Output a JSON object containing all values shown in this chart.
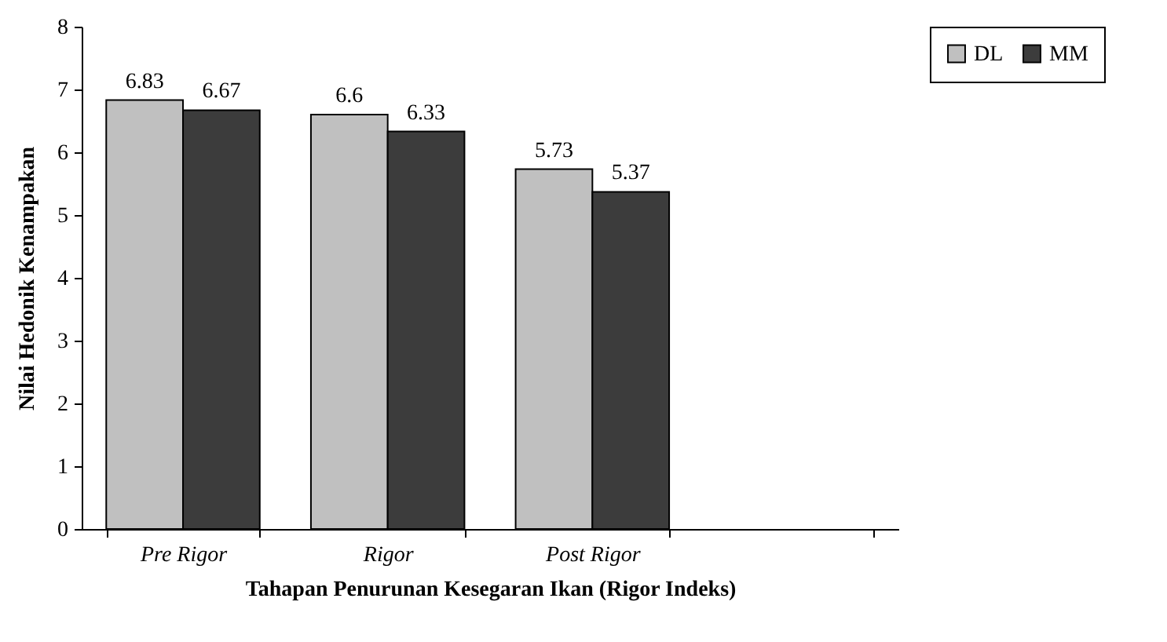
{
  "chart_data": {
    "type": "bar",
    "xlabel": "Tahapan Penurunan Kesegaran Ikan (Rigor Indeks)",
    "ylabel": "Nilai Hedonik Kenampakan",
    "categories": [
      "Pre Rigor",
      "Rigor",
      "Post Rigor",
      null
    ],
    "series": [
      {
        "name": "DL",
        "color": "#c0c0c0",
        "values": [
          6.83,
          6.6,
          5.73,
          null
        ]
      },
      {
        "name": "MM",
        "color": "#3c3c3c",
        "values": [
          6.67,
          6.33,
          5.37,
          null
        ]
      }
    ],
    "ylim": [
      0,
      8
    ],
    "yticks": [
      0,
      1,
      2,
      3,
      4,
      5,
      6,
      7,
      8
    ],
    "grid": false,
    "legend": "right",
    "data_labels": true
  }
}
